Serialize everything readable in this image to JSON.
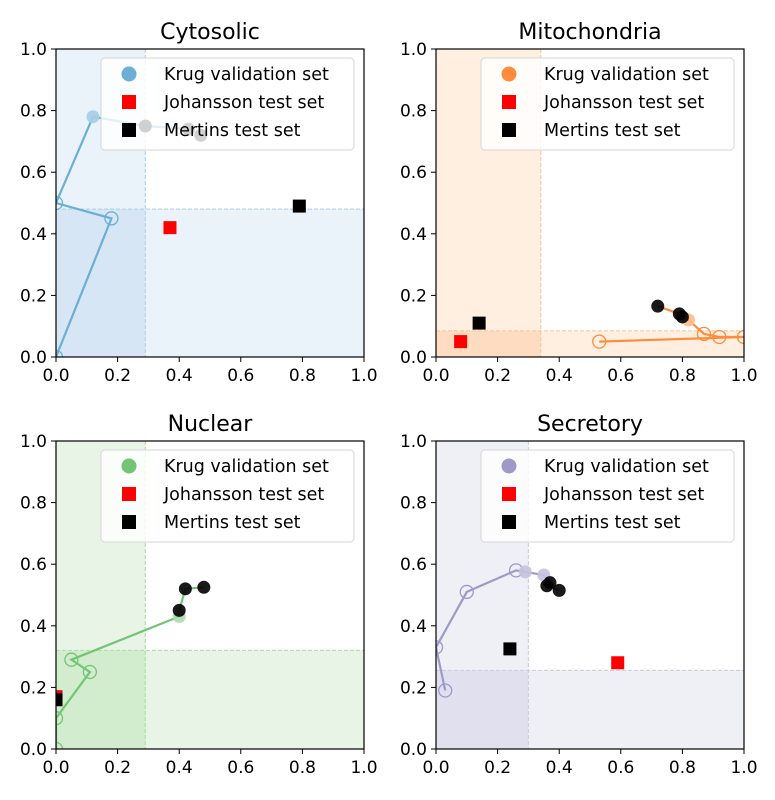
{
  "chart_data": [
    {
      "type": "scatter",
      "title": "Cytosolic",
      "color": "#6baed6",
      "light": "#eaf2fa",
      "mid": "#d7e6f4",
      "dash": "#b4d4ec",
      "xlim": [
        0,
        1
      ],
      "ylim": [
        0,
        1
      ],
      "xticks": [
        "0.0",
        "0.2",
        "0.4",
        "0.6",
        "0.8",
        "1.0"
      ],
      "yticks": [
        "0.0",
        "0.2",
        "0.4",
        "0.6",
        "0.8",
        "1.0"
      ],
      "thresholds": {
        "x": 0.29,
        "y": 0.48
      },
      "series": [
        {
          "name": "Krug validation set",
          "points": [
            {
              "x": 0.0,
              "y": 0.0
            },
            {
              "x": 0.18,
              "y": 0.45
            },
            {
              "x": 0.0,
              "y": 0.5
            },
            {
              "x": 0.12,
              "y": 0.78
            },
            {
              "x": 0.29,
              "y": 0.75
            },
            {
              "x": 0.43,
              "y": 0.74
            },
            {
              "x": 0.47,
              "y": 0.72
            }
          ]
        },
        {
          "name": "Johansson test set",
          "points": [
            {
              "x": 0.37,
              "y": 0.42
            }
          ]
        },
        {
          "name": "Mertins test set",
          "points": [
            {
              "x": 0.79,
              "y": 0.49
            }
          ]
        }
      ]
    },
    {
      "type": "scatter",
      "title": "Mitochondria",
      "color": "#fd8d3c",
      "light": "#feefe1",
      "mid": "#fddcc2",
      "dash": "#fdc79e",
      "xlim": [
        0,
        1
      ],
      "ylim": [
        0,
        1
      ],
      "xticks": [
        "0.0",
        "0.2",
        "0.4",
        "0.6",
        "0.8",
        "1.0"
      ],
      "yticks": [
        "0.0",
        "0.2",
        "0.4",
        "0.6",
        "0.8",
        "1.0"
      ],
      "thresholds": {
        "x": 0.34,
        "y": 0.085
      },
      "series": [
        {
          "name": "Krug validation set",
          "points": [
            {
              "x": 0.53,
              "y": 0.05
            },
            {
              "x": 1.0,
              "y": 0.065
            },
            {
              "x": 0.92,
              "y": 0.065
            },
            {
              "x": 0.87,
              "y": 0.075
            },
            {
              "x": 0.82,
              "y": 0.12
            },
            {
              "x": 0.8,
              "y": 0.13
            },
            {
              "x": 0.79,
              "y": 0.14
            },
            {
              "x": 0.72,
              "y": 0.165
            }
          ]
        },
        {
          "name": "Johansson test set",
          "points": [
            {
              "x": 0.08,
              "y": 0.05
            }
          ]
        },
        {
          "name": "Mertins test set",
          "points": [
            {
              "x": 0.14,
              "y": 0.11
            }
          ]
        }
      ]
    },
    {
      "type": "scatter",
      "title": "Nuclear",
      "color": "#74c476",
      "light": "#e8f4e6",
      "mid": "#d2ecce",
      "dash": "#b2dfad",
      "xlim": [
        0,
        1
      ],
      "ylim": [
        0,
        1
      ],
      "xticks": [
        "0.0",
        "0.2",
        "0.4",
        "0.6",
        "0.8",
        "1.0"
      ],
      "yticks": [
        "0.0",
        "0.2",
        "0.4",
        "0.6",
        "0.8",
        "1.0"
      ],
      "thresholds": {
        "x": 0.29,
        "y": 0.32
      },
      "series": [
        {
          "name": "Krug validation set",
          "points": [
            {
              "x": 0.0,
              "y": 0.0
            },
            {
              "x": 0.0,
              "y": 0.1
            },
            {
              "x": 0.11,
              "y": 0.25
            },
            {
              "x": 0.05,
              "y": 0.29
            },
            {
              "x": 0.4,
              "y": 0.43
            },
            {
              "x": 0.4,
              "y": 0.45
            },
            {
              "x": 0.42,
              "y": 0.52
            },
            {
              "x": 0.48,
              "y": 0.525
            }
          ]
        },
        {
          "name": "Johansson test set",
          "points": [
            {
              "x": 0.0,
              "y": 0.17
            }
          ]
        },
        {
          "name": "Mertins test set",
          "points": [
            {
              "x": 0.0,
              "y": 0.16
            }
          ]
        }
      ]
    },
    {
      "type": "scatter",
      "title": "Secretory",
      "color": "#9e9ac8",
      "light": "#efeff6",
      "mid": "#e1e0ee",
      "dash": "#cfcde4",
      "xlim": [
        0,
        1
      ],
      "ylim": [
        0,
        1
      ],
      "xticks": [
        "0.0",
        "0.2",
        "0.4",
        "0.6",
        "0.8",
        "1.0"
      ],
      "yticks": [
        "0.0",
        "0.2",
        "0.4",
        "0.6",
        "0.8",
        "1.0"
      ],
      "thresholds": {
        "x": 0.3,
        "y": 0.255
      },
      "series": [
        {
          "name": "Krug validation set",
          "points": [
            {
              "x": 0.03,
              "y": 0.19
            },
            {
              "x": 0.0,
              "y": 0.33
            },
            {
              "x": 0.1,
              "y": 0.51
            },
            {
              "x": 0.26,
              "y": 0.58
            },
            {
              "x": 0.29,
              "y": 0.575
            },
            {
              "x": 0.35,
              "y": 0.565
            },
            {
              "x": 0.37,
              "y": 0.54
            },
            {
              "x": 0.36,
              "y": 0.53
            },
            {
              "x": 0.4,
              "y": 0.515
            }
          ]
        },
        {
          "name": "Johansson test set",
          "points": [
            {
              "x": 0.59,
              "y": 0.28
            }
          ]
        },
        {
          "name": "Mertins test set",
          "points": [
            {
              "x": 0.24,
              "y": 0.325
            }
          ]
        }
      ]
    }
  ]
}
